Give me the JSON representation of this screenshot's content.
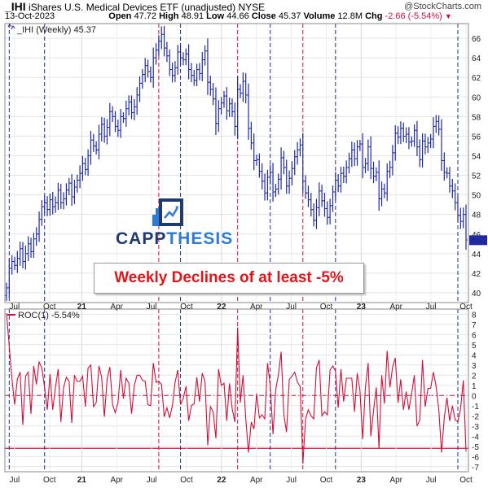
{
  "header": {
    "symbol": "_IHI",
    "name": "iShares U.S. Medical Devices ETF (unadjusted)",
    "exchange": "NYSE",
    "date": "13-Oct-2023",
    "open_label": "Open",
    "open": "47.72",
    "high_label": "High",
    "high": "48.91",
    "low_label": "Low",
    "low": "44.66",
    "close_label": "Close",
    "close": "45.37",
    "volume_label": "Volume",
    "volume": "12.8M",
    "chg_label": "Chg",
    "chg": "-2.66 (-5.54%)",
    "chg_arrow": "▼",
    "watermark": "@StockCharts.com"
  },
  "logo": {
    "word1": "CAPP",
    "word2": "THESIS"
  },
  "annotation": "Weekly Declines of at least -5%",
  "colors": {
    "price": "#1f2a9e",
    "roc": "#d0103a",
    "signal_line_blue": "#1f2a9e",
    "signal_line_red": "#d0103a",
    "grid": "#cccccc"
  },
  "chart_data": [
    {
      "type": "ohlc",
      "legend": "_IHI (Weekly) 45.37",
      "ylim": [
        39,
        67.5
      ],
      "y_ticks": [
        40,
        42,
        44,
        46,
        48,
        50,
        52,
        54,
        56,
        58,
        60,
        62,
        64,
        66
      ],
      "x_tick_labels": [
        "Jul",
        "Oct",
        "21",
        "Apr",
        "Jul",
        "Oct",
        "22",
        "Apr",
        "Jul",
        "Oct",
        "23",
        "Apr",
        "Jul",
        "Oct"
      ],
      "grid": true,
      "closes": [
        40.5,
        42.5,
        43.2,
        42.8,
        43.5,
        44.5,
        43.2,
        44.0,
        45.0,
        44.2,
        45.5,
        46.0,
        47.5,
        48.8,
        49.2,
        48.5,
        49.5,
        48.8,
        49.2,
        50.5,
        49.2,
        49.6,
        50.5,
        51.2,
        49.8,
        50.8,
        51.5,
        52.2,
        53.2,
        52.6,
        54.0,
        55.6,
        55.0,
        54.6,
        56.2,
        57.2,
        56.0,
        56.9,
        58.5,
        58.0,
        57.0,
        56.6,
        58.0,
        57.8,
        58.8,
        59.5,
        58.4,
        59.0,
        60.2,
        61.4,
        62.3,
        63.2,
        62.6,
        62.0,
        64.0,
        64.8,
        65.7,
        66.4,
        65.0,
        64.2,
        62.8,
        62.2,
        63.0,
        64.6,
        64.0,
        63.8,
        64.4,
        62.8,
        62.2,
        61.7,
        62.8,
        62.4,
        63.8,
        64.7,
        61.5,
        60.8,
        59.8,
        57.3,
        58.8,
        59.4,
        60.1,
        58.6,
        59.3,
        58.5,
        57.0,
        60.8,
        60.4,
        61.6,
        60.2,
        56.8,
        55.3,
        53.5,
        53.6,
        52.4,
        51.4,
        50.2,
        51.8,
        52.3,
        50.3,
        50.6,
        51.6,
        53.8,
        52.8,
        50.9,
        51.7,
        52.7,
        53.9,
        54.6,
        55.1,
        51.4,
        50.2,
        49.5,
        48.5,
        47.4,
        48.7,
        50.4,
        49.4,
        48.6,
        47.7,
        48.9,
        50.3,
        51.5,
        50.9,
        52.2,
        51.9,
        52.8,
        53.7,
        54.6,
        53.7,
        54.9,
        55.2,
        52.8,
        53.2,
        54.9,
        52.7,
        51.9,
        52.3,
        49.6,
        50.6,
        50.2,
        52.4,
        52.8,
        54.3,
        56.3,
        55.9,
        56.8,
        56.0,
        56.2,
        55.4,
        55.5,
        56.6,
        54.9,
        53.6,
        55.5,
        54.9,
        55.3,
        55.7,
        57.0,
        57.5,
        56.7,
        53.5,
        52.3,
        52.2,
        50.9,
        50.4,
        49.2,
        47.9,
        47.3,
        48.0,
        45.4
      ],
      "last_close": 45.37
    },
    {
      "type": "line",
      "legend": "ROC(1) -5.54%",
      "ylim": [
        -7.5,
        8.5
      ],
      "y_ticks": [
        -7,
        -6,
        -5,
        -4,
        -3,
        -2,
        -1,
        0,
        1,
        2,
        3,
        4,
        5,
        6,
        7,
        8
      ],
      "reference_lines": [
        0,
        -5.2
      ],
      "values": [
        8.1,
        4.9,
        1.6,
        -0.9,
        1.6,
        2.3,
        -2.9,
        1.9,
        2.3,
        -1.8,
        2.9,
        1.1,
        3.3,
        2.7,
        0.8,
        -1.4,
        2.1,
        -1.4,
        0.8,
        2.6,
        -2.6,
        0.8,
        1.8,
        1.4,
        -2.7,
        2.0,
        1.4,
        1.4,
        1.9,
        -1.1,
        2.7,
        3.0,
        -1.1,
        -0.7,
        2.9,
        1.8,
        -2.1,
        1.6,
        2.8,
        -0.9,
        -1.7,
        -0.7,
        2.5,
        -0.3,
        1.7,
        1.2,
        -1.8,
        1.0,
        2.0,
        2.0,
        1.5,
        1.4,
        -0.9,
        -1.0,
        3.2,
        1.3,
        1.4,
        1.1,
        -2.1,
        -1.2,
        -2.2,
        -1.0,
        1.3,
        2.5,
        -0.9,
        -0.3,
        0.9,
        -2.5,
        -1.0,
        -0.8,
        1.8,
        -0.6,
        2.2,
        1.4,
        -4.9,
        -1.1,
        -1.6,
        -4.2,
        2.6,
        1.0,
        1.2,
        -2.5,
        1.2,
        -1.3,
        -2.6,
        6.7,
        -0.7,
        2.0,
        -2.3,
        -5.6,
        -2.6,
        -3.3,
        0.2,
        -2.2,
        -1.9,
        -2.3,
        3.2,
        1.0,
        -3.8,
        0.6,
        2.0,
        4.3,
        -1.9,
        -3.6,
        1.6,
        1.9,
        2.3,
        1.3,
        0.9,
        -6.7,
        -2.3,
        -1.4,
        -2.0,
        -2.3,
        2.7,
        3.5,
        -2.0,
        -1.6,
        -1.9,
        2.5,
        2.9,
        2.4,
        -1.2,
        2.6,
        -0.6,
        1.7,
        1.7,
        1.7,
        -1.6,
        2.2,
        0.5,
        -4.3,
        0.8,
        3.2,
        -4.0,
        -1.5,
        0.8,
        -5.2,
        2.0,
        -0.8,
        4.4,
        0.8,
        2.8,
        3.7,
        -0.7,
        1.6,
        -1.4,
        0.4,
        -1.4,
        0.2,
        2.0,
        -3.0,
        -2.4,
        3.5,
        -1.1,
        0.7,
        0.7,
        2.3,
        0.9,
        -1.4,
        -5.6,
        -2.2,
        -0.2,
        -2.5,
        -1.0,
        -2.4,
        -2.6,
        -1.3,
        1.5,
        -5.5
      ]
    }
  ],
  "signal_weeks_blue": [
    1,
    14,
    64,
    97,
    121
  ],
  "signal_weeks_red": [
    56,
    85,
    109
  ],
  "signal_week_last": 166
}
